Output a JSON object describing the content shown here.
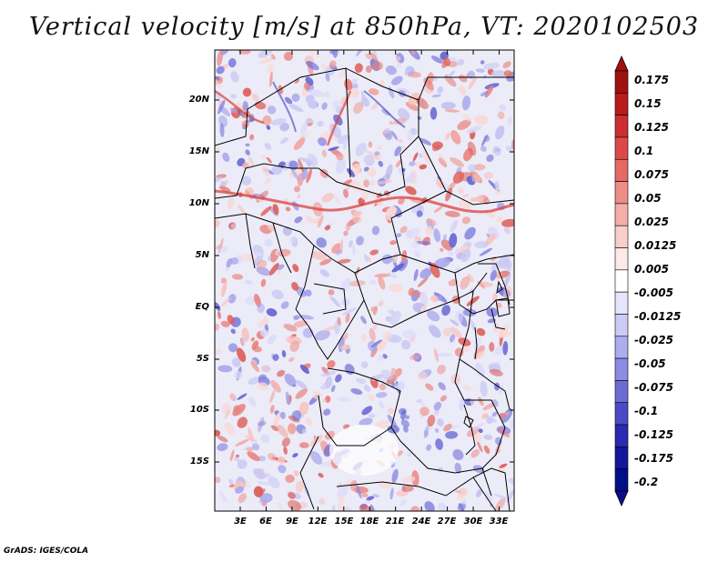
{
  "title": "Vertical velocity [m/s] at 850hPa, VT: 2020102503",
  "footer": "GrADS: IGES/COLA",
  "map": {
    "variable": "Vertical velocity",
    "units": "m/s",
    "level": "850hPa",
    "valid_time": "2020102503",
    "y_tick_labels": [
      "20N",
      "15N",
      "10N",
      "5N",
      "EQ",
      "5S",
      "10S",
      "15S"
    ],
    "x_tick_labels": [
      "3E",
      "6E",
      "9E",
      "12E",
      "15E",
      "18E",
      "21E",
      "24E",
      "27E",
      "30E",
      "33E"
    ],
    "lat_range": [
      -20,
      24
    ],
    "lon_range": [
      0,
      35
    ]
  },
  "colorbar": {
    "labels": [
      "0.175",
      "0.15",
      "0.125",
      "0.1",
      "0.075",
      "0.05",
      "0.025",
      "0.0125",
      "0.005",
      "-0.005",
      "-0.0125",
      "-0.025",
      "-0.05",
      "-0.075",
      "-0.1",
      "-0.125",
      "-0.175",
      "-0.2"
    ],
    "colors": [
      "#a01010",
      "#b81c1c",
      "#cc2f2f",
      "#dc4a48",
      "#e56a66",
      "#ee8c88",
      "#f4aeaa",
      "#f9cfcc",
      "#fde9e7",
      "#ffffff",
      "#e5e5fb",
      "#cbcbf5",
      "#acacee",
      "#8c8ce4",
      "#6c6cd6",
      "#4a4ac6",
      "#2a2ab2",
      "#16169a",
      "#000e88"
    ],
    "top_arrow_color": "#a01010",
    "bottom_arrow_color": "#0c0c8c"
  }
}
